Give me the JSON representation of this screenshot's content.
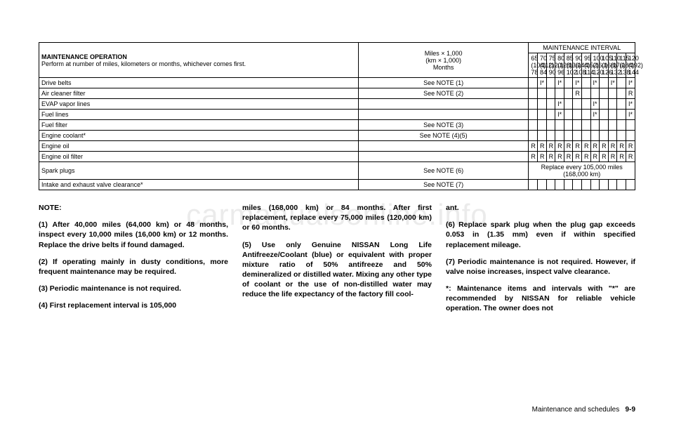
{
  "table": {
    "op_header_bold": "MAINTENANCE OPERATION",
    "op_header_rest": "Perform at number of miles, kilometers or months, whichever comes first.",
    "miles_header": "Miles × 1,000\n(km × 1,000)\nMonths",
    "interval_header": "MAINTENANCE INTERVAL",
    "intervals": [
      {
        "mi": "65",
        "km": "(104)",
        "mo": "78"
      },
      {
        "mi": "70",
        "km": "(112)",
        "mo": "84"
      },
      {
        "mi": "75",
        "km": "(120)",
        "mo": "90"
      },
      {
        "mi": "80",
        "km": "(128)",
        "mo": "96"
      },
      {
        "mi": "85",
        "km": "(136)",
        "mo": "102"
      },
      {
        "mi": "90",
        "km": "(144)",
        "mo": "108"
      },
      {
        "mi": "95",
        "km": "(152)",
        "mo": "114"
      },
      {
        "mi": "100",
        "km": "(160)",
        "mo": "120"
      },
      {
        "mi": "105",
        "km": "(168)",
        "mo": "126"
      },
      {
        "mi": "110",
        "km": "(176)",
        "mo": "132"
      },
      {
        "mi": "115",
        "km": "(184)",
        "mo": "138"
      },
      {
        "mi": "120",
        "km": "(192)",
        "mo": "144"
      }
    ],
    "rows": [
      {
        "name": "Drive belts",
        "note": "See NOTE (1)",
        "cells": [
          "",
          "I*",
          "",
          "I*",
          "",
          "I*",
          "",
          "I*",
          "",
          "I*",
          "",
          "I*"
        ]
      },
      {
        "name": "Air cleaner filter",
        "note": "See NOTE (2)",
        "cells": [
          "",
          "",
          "",
          "",
          "",
          "R",
          "",
          "",
          "",
          "",
          "",
          "R"
        ]
      },
      {
        "name": "EVAP vapor lines",
        "note": "",
        "cells": [
          "",
          "",
          "",
          "I*",
          "",
          "",
          "",
          "I*",
          "",
          "",
          "",
          "I*"
        ]
      },
      {
        "name": "Fuel lines",
        "note": "",
        "cells": [
          "",
          "",
          "",
          "I*",
          "",
          "",
          "",
          "I*",
          "",
          "",
          "",
          "I*"
        ]
      },
      {
        "name": "Fuel filter",
        "note": "See NOTE (3)",
        "cells": [
          "",
          "",
          "",
          "",
          "",
          "",
          "",
          "",
          "",
          "",
          "",
          ""
        ]
      },
      {
        "name": "Engine coolant*",
        "note": "See NOTE (4)(5)",
        "cells": [
          "",
          "",
          "",
          "",
          "",
          "",
          "",
          "",
          "",
          "",
          "",
          ""
        ]
      },
      {
        "name": "Engine oil",
        "note": "",
        "cells": [
          "R",
          "R",
          "R",
          "R",
          "R",
          "R",
          "R",
          "R",
          "R",
          "R",
          "R",
          "R"
        ]
      },
      {
        "name": "Engine oil filter",
        "note": "",
        "cells": [
          "R",
          "R",
          "R",
          "R",
          "R",
          "R",
          "R",
          "R",
          "R",
          "R",
          "R",
          "R"
        ]
      }
    ],
    "spark_row": {
      "name": "Spark plugs",
      "note": "See NOTE (6)",
      "span_text": "Replace every 105,000 miles (168,000 km)"
    },
    "valve_row": {
      "name": "Intake and exhaust valve clearance*",
      "note": "See NOTE (7)",
      "cells": [
        "",
        "",
        "",
        "",
        "",
        "",
        "",
        "",
        "",
        "",
        "",
        ""
      ]
    }
  },
  "notes": {
    "title": "NOTE:",
    "col1": [
      "(1) After 40,000 miles (64,000 km) or 48 months, inspect every 10,000 miles (16,000 km) or 12 months. Replace the drive belts if found damaged.",
      "(2) If operating mainly in dusty conditions, more frequent maintenance may be required.",
      "(3) Periodic maintenance is not required.",
      "(4) First replacement interval is 105,000"
    ],
    "col2": [
      "miles (168,000 km) or 84 months. After first replacement, replace every 75,000 miles (120,000 km) or 60 months.",
      "(5) Use only Genuine NISSAN Long Life Antifreeze/Coolant (blue) or equivalent with proper mixture ratio of 50% antifreeze and 50% demineralized or distilled water. Mixing any other type of coolant or the use of non-distilled water may reduce the life expectancy of the factory fill cool-"
    ],
    "col3": [
      "ant.",
      "(6) Replace spark plug when the plug gap exceeds 0.053 in (1.35 mm) even if within specified replacement mileage.",
      "(7) Periodic maintenance is not required. However, if valve noise increases, inspect valve clearance.",
      "*: Maintenance items and intervals with \"*\" are recommended by NISSAN for reliable vehicle operation. The owner does not"
    ]
  },
  "watermark": "carmanualsonline.info",
  "footer_label": "Maintenance and schedules",
  "footer_page": "9-9"
}
